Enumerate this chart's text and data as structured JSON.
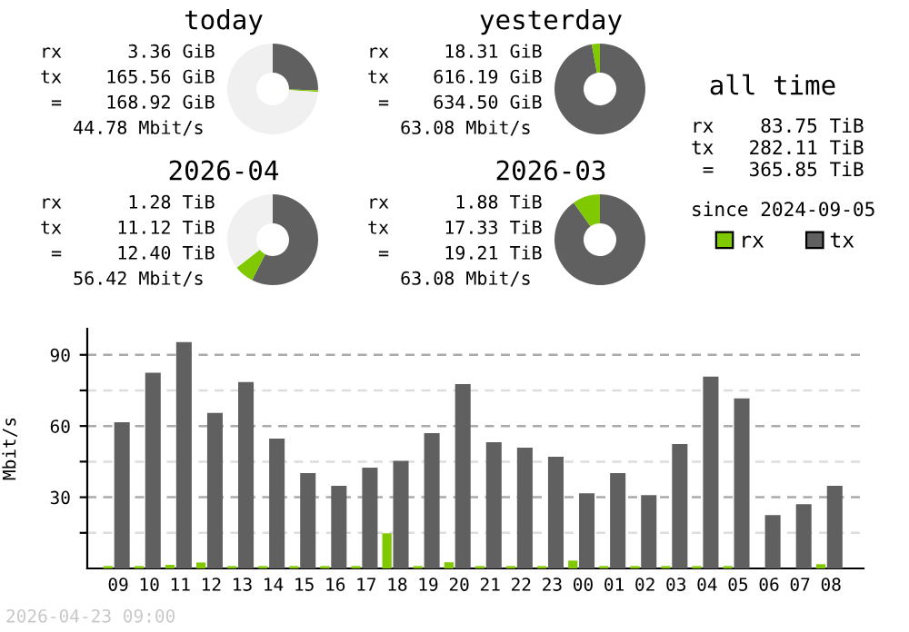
{
  "chart_data": [
    {
      "type": "donut",
      "title": "today",
      "categories": [
        null,
        null,
        null
      ],
      "values": [
        25.5,
        0.5,
        74
      ],
      "colors": [
        "#606060",
        "#80c800",
        "#f0f0f0"
      ],
      "annotations": [
        "rx      3.36 GiB",
        "tx    165.56 GiB",
        " =    168.92 GiB",
        "   44.78 Mbit/s"
      ]
    },
    {
      "type": "donut",
      "title": "yesterday",
      "categories": [
        null,
        null
      ],
      "values": [
        97.1,
        2.9
      ],
      "colors": [
        "#606060",
        "#80c800"
      ],
      "annotations": [
        "rx     18.31 GiB",
        "tx    616.19 GiB",
        " =    634.50 GiB",
        "   63.08 Mbit/s"
      ]
    },
    {
      "type": "other",
      "title": "all time",
      "annotations": [
        "rx    83.75 TiB",
        "tx   282.11 TiB",
        " =   365.85 TiB",
        "since 2024-09-05"
      ]
    },
    {
      "type": "donut",
      "title": "2026-04",
      "categories": [
        null,
        null,
        null
      ],
      "values": [
        57.5,
        7,
        35.5
      ],
      "colors": [
        "#606060",
        "#80c800",
        "#f0f0f0"
      ],
      "annotations": [
        "rx      1.28 TiB",
        "tx     11.12 TiB",
        " =     12.40 TiB",
        "   56.42 Mbit/s"
      ]
    },
    {
      "type": "donut",
      "title": "2026-03",
      "categories": [
        null,
        null
      ],
      "values": [
        90.2,
        9.8
      ],
      "colors": [
        "#606060",
        "#80c800"
      ],
      "annotations": [
        "rx      1.88 TiB",
        "tx     17.33 TiB",
        " =     19.21 TiB",
        "   63.08 Mbit/s"
      ]
    },
    {
      "type": "bar",
      "ylabel": "Mbit/s",
      "legend": "top right",
      "grid": "y",
      "categories": [
        "09",
        "10",
        "11",
        "12",
        "13",
        "14",
        "15",
        "16",
        "17",
        "18",
        "19",
        "20",
        "21",
        "22",
        "23",
        "00",
        "01",
        "02",
        "03",
        "04",
        "05",
        "06",
        "07",
        "08"
      ],
      "series": [
        {
          "name": "rx",
          "color": "#80c800",
          "values": [
            1,
            1,
            1.5,
            2.5,
            1,
            1,
            1,
            1,
            1,
            14.8,
            1,
            2.6,
            1,
            1,
            1,
            3.3,
            1,
            1,
            1,
            1,
            1,
            0,
            0,
            1.8
          ]
        },
        {
          "name": "tx",
          "color": "#606060",
          "values": [
            61.6,
            82.4,
            95.4,
            65.5,
            78.5,
            54.7,
            40.2,
            34.8,
            42.5,
            45.3,
            57,
            77.7,
            53.2,
            50.9,
            47.1,
            31.7,
            40.2,
            30.9,
            52.4,
            80.8,
            71.6,
            22.5,
            27.1,
            34.8
          ]
        }
      ],
      "ylim": [
        0,
        101
      ],
      "yticks": [
        {
          "value": 15,
          "label": null
        },
        30,
        {
          "value": 45,
          "label": null
        },
        60,
        {
          "value": 75,
          "label": null
        },
        90
      ],
      "annotations": [
        "2026-04-23 09:00"
      ]
    }
  ]
}
